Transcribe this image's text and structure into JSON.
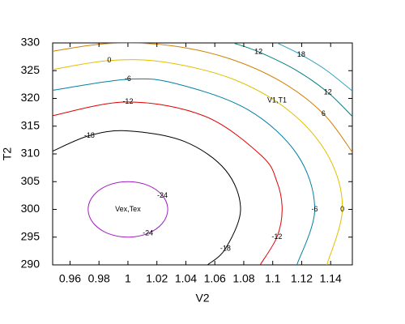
{
  "chart_data": {
    "type": "contour",
    "xlabel": "V2",
    "ylabel": "T2",
    "xlim": [
      0.948,
      1.155
    ],
    "ylim": [
      290,
      330
    ],
    "xticks": [
      0.96,
      0.98,
      1,
      1.02,
      1.04,
      1.06,
      1.08,
      1.1,
      1.12,
      1.14
    ],
    "yticks": [
      290,
      295,
      300,
      305,
      310,
      315,
      320,
      325,
      330
    ],
    "contours": [
      {
        "level": -24,
        "color": "#a020c0",
        "closed": true,
        "x": [
          1.0275,
          1.0238,
          1.0138,
          1,
          0.9862,
          0.9762,
          0.9725,
          0.9762,
          0.9862,
          1,
          1.0138,
          1.0238
        ],
        "y": [
          300,
          302.5,
          304.33,
          305,
          304.33,
          302.5,
          300,
          297.5,
          295.67,
          295,
          295.67,
          297.5
        ]
      },
      {
        "level": -18,
        "color": "#000000",
        "closed": false,
        "x": [
          1.055,
          1.0674,
          1.0778,
          1.0674,
          1.0389,
          1,
          0.9734,
          0.948
        ],
        "y": [
          290,
          292.93,
          300,
          307.08,
          312.25,
          314.15,
          313.3,
          310.5
        ]
      },
      {
        "level": -12,
        "color": "#e00000",
        "closed": false,
        "x": [
          1.0913,
          1.1029,
          1.1065,
          1.1029,
          1.0922,
          1.0533,
          1,
          0.948
        ],
        "y": [
          290,
          295,
          300,
          305,
          309.69,
          316.77,
          319.37,
          316.9
        ]
      },
      {
        "level": -6,
        "color": "#0080a0",
        "closed": false,
        "x": [
          1.1167,
          1.129,
          1.1169,
          1.0829,
          1.0334,
          1,
          0.948
        ],
        "y": [
          290,
          300,
          309.9,
          317.96,
          322.65,
          323.45,
          321.46
        ]
      },
      {
        "level": 0,
        "color": "#e0c000",
        "closed": false,
        "x": [
          1.1374,
          1.1481,
          1.1392,
          1.1134,
          1.0741,
          1.0258,
          0.9871,
          0.948
        ],
        "y": [
          290,
          300,
          309.21,
          317.32,
          323.32,
          326.53,
          326.82,
          325.2
        ]
      },
      {
        "level": 6,
        "color": "#d08000",
        "closed": false,
        "x": [
          1.155,
          1.1351,
          1.1061,
          1.0698,
          1.0287,
          0.9856,
          0.948
        ],
        "y": [
          310.3,
          317.21,
          322.98,
          327.19,
          329.55,
          329.88,
          328.5
        ]
      },
      {
        "level": 12,
        "color": "#008080",
        "closed": false,
        "x": [
          1.155,
          1.1381,
          1.1159,
          1.0902,
          1.0728
        ],
        "y": [
          316.75,
          321.08,
          325.12,
          328.4,
          330
        ]
      },
      {
        "level": 18,
        "color": "#30a0c0",
        "closed": false,
        "x": [
          1.155,
          1.1374,
          1.1197,
          1.103
        ],
        "y": [
          321.33,
          325,
          327.86,
          330
        ]
      }
    ],
    "annotations": [
      {
        "text": "Vex,Tex",
        "x": 1,
        "y": 300
      },
      {
        "text": "V1,T1",
        "x": 1.103,
        "y": 319.6
      }
    ]
  }
}
